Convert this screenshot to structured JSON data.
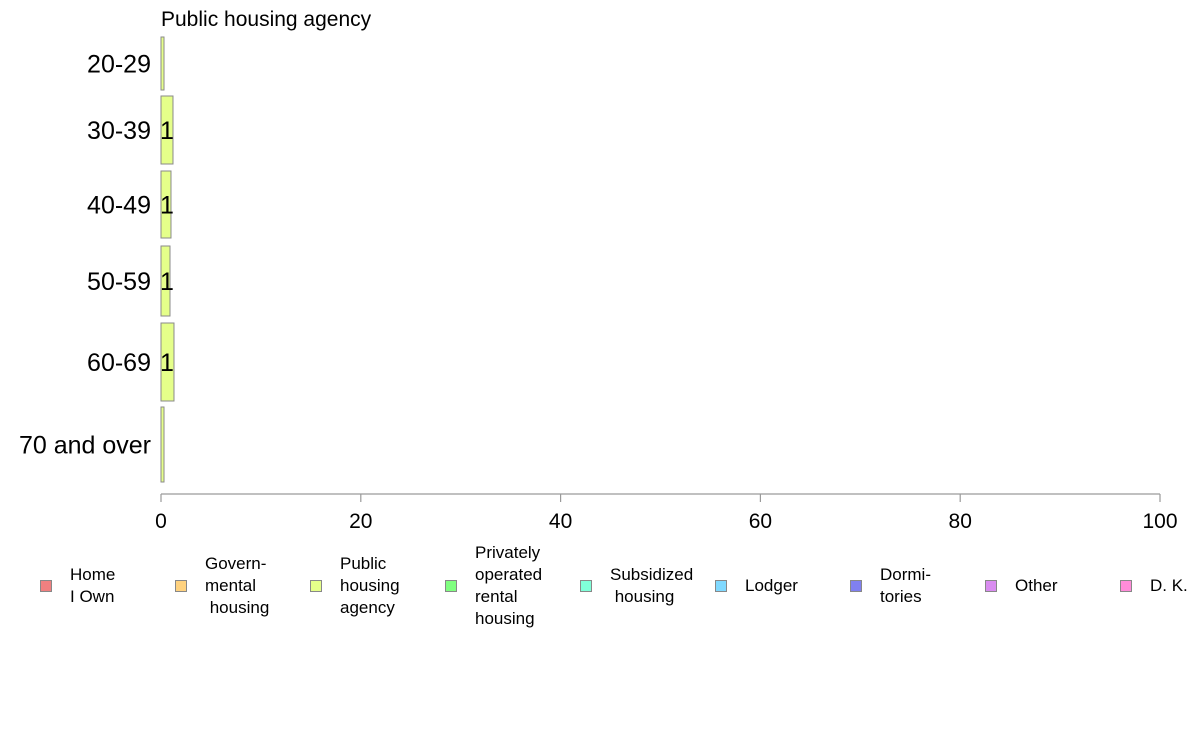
{
  "chart_data": {
    "type": "bar",
    "orientation": "horizontal",
    "title": "Public housing agency",
    "categories": [
      "20-29",
      "30-39",
      "40-49",
      "50-59",
      "60-69",
      "70 and over"
    ],
    "series": [
      {
        "name": "Public housing agency",
        "color": "#e5ff8a",
        "values": [
          0.3,
          1.2,
          1.0,
          0.9,
          1.3,
          0.3
        ],
        "data_labels": [
          "",
          "1",
          "1",
          "1",
          "1",
          ""
        ]
      }
    ],
    "xlim": [
      0,
      100
    ],
    "x_ticks": [
      "0",
      "20",
      "40",
      "60",
      "80",
      "100"
    ],
    "grid": false,
    "legend": {
      "placement": "bottom",
      "items": [
        {
          "label": "Home\nI Own",
          "color": "#f08080"
        },
        {
          "label": "Govern-\nmental\n housing",
          "color": "#ffd27f"
        },
        {
          "label": "Public\nhousing\nagency",
          "color": "#e5ff8a"
        },
        {
          "label": "Privately\noperated\nrental\nhousing",
          "color": "#80ff80"
        },
        {
          "label": "Subsidized\n housing",
          "color": "#80ffd9"
        },
        {
          "label": "Lodger",
          "color": "#80d9ff"
        },
        {
          "label": "Dormi-\ntories",
          "color": "#8080f0"
        },
        {
          "label": "Other",
          "color": "#d98cf0"
        },
        {
          "label": "D. K.",
          "color": "#ff8cd9"
        }
      ]
    }
  }
}
